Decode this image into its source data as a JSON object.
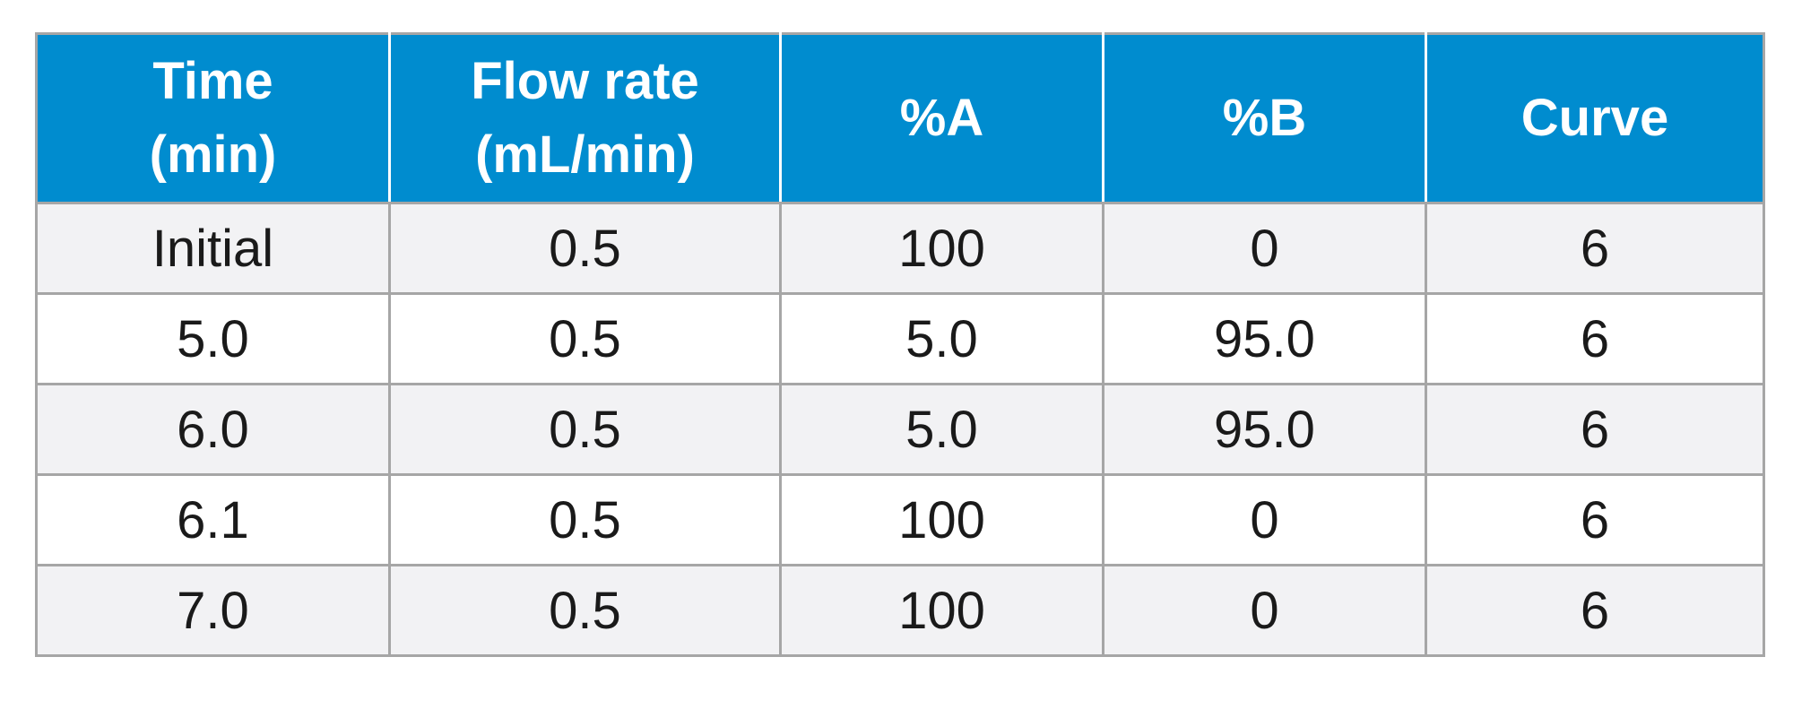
{
  "table": {
    "headers": [
      {
        "line1": "Time",
        "line2": "(min)"
      },
      {
        "line1": "Flow rate",
        "line2": "(mL/min)"
      },
      {
        "line1": "%A",
        "line2": ""
      },
      {
        "line1": "%B",
        "line2": ""
      },
      {
        "line1": "Curve",
        "line2": ""
      }
    ],
    "rows": [
      [
        "Initial",
        "0.5",
        "100",
        "0",
        "6"
      ],
      [
        "5.0",
        "0.5",
        "5.0",
        "95.0",
        "6"
      ],
      [
        "6.0",
        "0.5",
        "5.0",
        "95.0",
        "6"
      ],
      [
        "6.1",
        "0.5",
        "100",
        "0",
        "6"
      ],
      [
        "7.0",
        "0.5",
        "100",
        "0",
        "6"
      ]
    ]
  },
  "colors": {
    "header_bg": "#008ccf",
    "header_text": "#ffffff",
    "row_odd_bg": "#f2f2f4",
    "row_even_bg": "#ffffff",
    "border": "#a6a6a6"
  }
}
